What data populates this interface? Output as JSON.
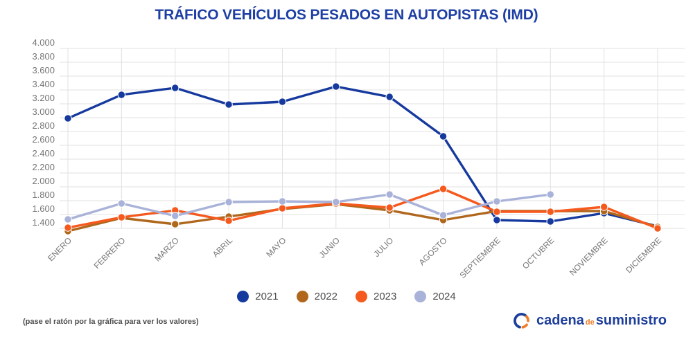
{
  "title": "TRÁFICO VEHÍCULOS PESADOS EN AUTOPISTAS (IMD)",
  "footer": {
    "note": "(pase el ratón por la gráfica para ver los valores)"
  },
  "logo": {
    "word1": "cadena",
    "word2": "de",
    "word3": "suministro"
  },
  "colors": {
    "title": "#1e3fa4",
    "grid": "#e0e0e0",
    "axis_text": "#757575",
    "legend_text": "#4c4c4c",
    "logo_blue": "#1d3e9b",
    "logo_orange": "#ef7d26",
    "background": "#ffffff"
  },
  "chart_data": {
    "type": "line",
    "title": "TRÁFICO VEHÍCULOS PESADOS EN AUTOPISTAS (IMD)",
    "xlabel": "",
    "ylabel": "",
    "grid": true,
    "legend_position": "bottom",
    "ylim": [
      1400,
      4000
    ],
    "ytick_step": 200,
    "ytick_labels": [
      "4.000",
      "3.800",
      "3.600",
      "3.400",
      "3.200",
      "3.000",
      "2.800",
      "2.600",
      "2.400",
      "2.200",
      "2.000",
      "1.800",
      "1.600",
      "1.400"
    ],
    "categories": [
      "ENERO",
      "FEBRERO",
      "MARZO",
      "ABRIL",
      "MAYO",
      "JUNIO",
      "JULIO",
      "AGOSTO",
      "SEPTIEMBRE",
      "OCTUBRE",
      "NOVIEMBRE",
      "DICIEMBRE"
    ],
    "series": [
      {
        "name": "2021",
        "color": "#16399e",
        "values": [
          2990,
          3330,
          3430,
          3190,
          3230,
          3450,
          3300,
          2730,
          1520,
          1500,
          1620,
          1430
        ]
      },
      {
        "name": "2022",
        "color": "#b0671c",
        "values": [
          1360,
          1550,
          1460,
          1570,
          1680,
          1750,
          1660,
          1520,
          1650,
          1650,
          1650,
          1420
        ]
      },
      {
        "name": "2023",
        "color": "#f5591d",
        "values": [
          1410,
          1560,
          1660,
          1510,
          1690,
          1760,
          1700,
          1970,
          1640,
          1640,
          1710,
          1400
        ]
      },
      {
        "name": "2024",
        "color": "#a9b2d8",
        "values": [
          1530,
          1760,
          1580,
          1780,
          1790,
          1780,
          1890,
          1590,
          1790,
          1890,
          null,
          null
        ]
      }
    ]
  }
}
